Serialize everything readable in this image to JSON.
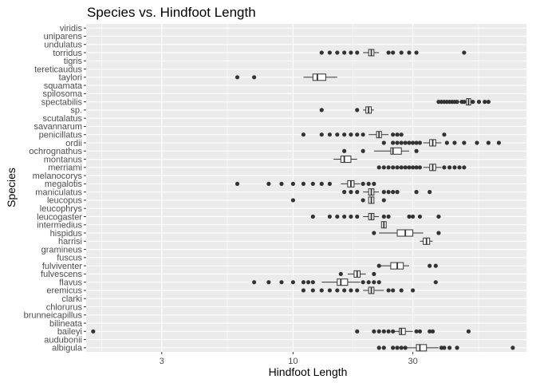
{
  "chart_data": {
    "type": "boxplot",
    "title": "Species vs. Hindfoot Length",
    "xlabel": "Hindfoot Length",
    "ylabel": "Species",
    "x_scale": "log10",
    "xlim": [
      1.5,
      85
    ],
    "x_ticks": [
      3,
      10,
      30
    ],
    "grid": true,
    "categories": [
      "albigula",
      "audubonii",
      "baileyi",
      "bilineata",
      "brunneicapillus",
      "chlorurus",
      "clarki",
      "eremicus",
      "flavus",
      "fulvescens",
      "fulviventer",
      "fuscus",
      "gramineus",
      "harrisi",
      "hispidus",
      "intermedius",
      "leucogaster",
      "leucophrys",
      "leucopus",
      "maniculatus",
      "megalotis",
      "melanocorys",
      "merriami",
      "montanus",
      "ochrognathus",
      "ordii",
      "penicillatus",
      "savannarum",
      "scutalatus",
      "sp.",
      "spectabilis",
      "spilosoma",
      "squamata",
      "taylori",
      "tereticaudus",
      "tigris",
      "torridus",
      "undulatus",
      "uniparens",
      "viridis"
    ],
    "boxes": {
      "albigula": {
        "q1": 31,
        "median": 32,
        "q3": 34,
        "wmin": 27,
        "wmax": 38,
        "outliers": [
          22,
          23,
          25,
          26,
          27,
          28,
          39,
          40,
          42,
          45,
          75
        ]
      },
      "baileyi": {
        "q1": 26.5,
        "median": 27,
        "q3": 28,
        "wmin": 25,
        "wmax": 30,
        "outliers": [
          1.6,
          18,
          21,
          22,
          23,
          24,
          25,
          31,
          32,
          35,
          36,
          50
        ]
      },
      "eremicus": {
        "q1": 20,
        "median": 20.5,
        "q3": 21,
        "wmin": 19,
        "wmax": 23,
        "outliers": [
          11,
          12,
          13,
          14,
          15,
          16,
          17,
          18,
          24,
          25,
          27,
          30
        ]
      },
      "flavus": {
        "q1": 15,
        "median": 15.5,
        "q3": 16.5,
        "wmin": 13,
        "wmax": 18.5,
        "outliers": [
          7,
          8,
          9,
          10,
          11,
          11.5,
          12,
          19,
          20,
          21,
          22,
          37
        ]
      },
      "fulvescens": {
        "q1": 17.5,
        "median": 18,
        "q3": 18.5,
        "wmin": 16.5,
        "wmax": 19.5,
        "outliers": [
          15.5,
          21
        ]
      },
      "fulviventer": {
        "q1": 24.5,
        "median": 26,
        "q3": 27.5,
        "wmin": 22,
        "wmax": 29,
        "outliers": [
          22,
          35,
          37
        ]
      },
      "harrisi": {
        "q1": 33,
        "median": 34,
        "q3": 35,
        "wmin": 32,
        "wmax": 36,
        "outliers": []
      },
      "hispidus": {
        "q1": 26,
        "median": 28,
        "q3": 30,
        "wmin": 22,
        "wmax": 33,
        "outliers": [
          21,
          38
        ]
      },
      "intermedius": {
        "q1": 22.5,
        "median": 23,
        "q3": 23.5,
        "wmin": 22.5,
        "wmax": 23.5,
        "outliers": []
      },
      "leucogaster": {
        "q1": 20,
        "median": 20.5,
        "q3": 21,
        "wmin": 19,
        "wmax": 22,
        "outliers": [
          12,
          14,
          15,
          16,
          17,
          18,
          23,
          24,
          29,
          30,
          32,
          38
        ]
      },
      "leucopus": {
        "q1": 20,
        "median": 20.5,
        "q3": 21,
        "wmin": 20,
        "wmax": 21,
        "outliers": [
          10,
          19,
          23
        ]
      },
      "maniculatus": {
        "q1": 20,
        "median": 20.5,
        "q3": 21,
        "wmin": 19,
        "wmax": 22,
        "outliers": [
          16,
          17,
          18,
          23,
          24,
          25,
          26,
          31,
          35
        ]
      },
      "megalotis": {
        "q1": 16.5,
        "median": 17,
        "q3": 17.5,
        "wmin": 15.5,
        "wmax": 18.5,
        "outliers": [
          6,
          8,
          9,
          10,
          11,
          12,
          13,
          14,
          19,
          20,
          21
        ]
      },
      "merriami": {
        "q1": 35,
        "median": 36,
        "q3": 37,
        "wmin": 33,
        "wmax": 39,
        "outliers": [
          22,
          23,
          24,
          25,
          26,
          27,
          28,
          29,
          30,
          31,
          32,
          40,
          42,
          44,
          46,
          48
        ]
      },
      "montanus": {
        "q1": 15.5,
        "median": 16,
        "q3": 17,
        "wmin": 14.5,
        "wmax": 18,
        "outliers": []
      },
      "ochrognathus": {
        "q1": 24.5,
        "median": 25,
        "q3": 27,
        "wmin": 21,
        "wmax": 29,
        "outliers": [
          16,
          19,
          31
        ]
      },
      "ordii": {
        "q1": 35,
        "median": 36,
        "q3": 37,
        "wmin": 33,
        "wmax": 39,
        "outliers": [
          23,
          25,
          26,
          27,
          28,
          29,
          30,
          31,
          32,
          41,
          44,
          48,
          54,
          60,
          66
        ]
      },
      "penicillatus": {
        "q1": 21.5,
        "median": 22,
        "q3": 22.5,
        "wmin": 20,
        "wmax": 24,
        "outliers": [
          11,
          13,
          14,
          15,
          16,
          17,
          18,
          19,
          25,
          26,
          27,
          40
        ]
      },
      "sp.": {
        "q1": 19.5,
        "median": 20,
        "q3": 20.5,
        "wmin": 19,
        "wmax": 21,
        "outliers": [
          13,
          18
        ]
      },
      "spectabilis": {
        "q1": 49,
        "median": 50,
        "q3": 51,
        "wmin": 46,
        "wmax": 53,
        "outliers": [
          38,
          39,
          40,
          41,
          42,
          43,
          44,
          45,
          47,
          48,
          52,
          55,
          58,
          60
        ]
      },
      "taylori": {
        "q1": 12,
        "median": 12.5,
        "q3": 13.5,
        "wmin": 11,
        "wmax": 15,
        "outliers": [
          6,
          7
        ]
      },
      "torridus": {
        "q1": 20,
        "median": 20.5,
        "q3": 21,
        "wmin": 19,
        "wmax": 22,
        "outliers": [
          13,
          14,
          15,
          16,
          17,
          18,
          24,
          25,
          27,
          29,
          31,
          48
        ]
      }
    }
  }
}
